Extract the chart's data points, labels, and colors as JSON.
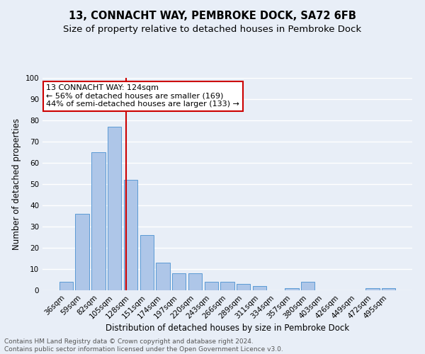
{
  "title": "13, CONNACHT WAY, PEMBROKE DOCK, SA72 6FB",
  "subtitle": "Size of property relative to detached houses in Pembroke Dock",
  "xlabel": "Distribution of detached houses by size in Pembroke Dock",
  "ylabel": "Number of detached properties",
  "footnote1": "Contains HM Land Registry data © Crown copyright and database right 2024.",
  "footnote2": "Contains public sector information licensed under the Open Government Licence v3.0.",
  "bar_labels": [
    "36sqm",
    "59sqm",
    "82sqm",
    "105sqm",
    "128sqm",
    "151sqm",
    "174sqm",
    "197sqm",
    "220sqm",
    "243sqm",
    "266sqm",
    "289sqm",
    "311sqm",
    "334sqm",
    "357sqm",
    "380sqm",
    "403sqm",
    "426sqm",
    "449sqm",
    "472sqm",
    "495sqm"
  ],
  "bar_values": [
    4,
    36,
    65,
    77,
    52,
    26,
    13,
    8,
    8,
    4,
    4,
    3,
    2,
    0,
    1,
    4,
    0,
    0,
    0,
    1,
    1
  ],
  "bar_color": "#aec6e8",
  "bar_edge_color": "#5b9bd5",
  "background_color": "#e8eef7",
  "grid_color": "#ffffff",
  "annotation_line1": "13 CONNACHT WAY: 124sqm",
  "annotation_line2": "← 56% of detached houses are smaller (169)",
  "annotation_line3": "44% of semi-detached houses are larger (133) →",
  "annotation_box_color": "#ffffff",
  "annotation_box_edge": "#cc0000",
  "vline_color": "#cc0000",
  "ylim": [
    0,
    100
  ],
  "yticks": [
    0,
    10,
    20,
    30,
    40,
    50,
    60,
    70,
    80,
    90,
    100
  ],
  "title_fontsize": 10.5,
  "subtitle_fontsize": 9.5,
  "xlabel_fontsize": 8.5,
  "ylabel_fontsize": 8.5,
  "tick_fontsize": 7.5,
  "annotation_fontsize": 8,
  "footnote_fontsize": 6.5
}
